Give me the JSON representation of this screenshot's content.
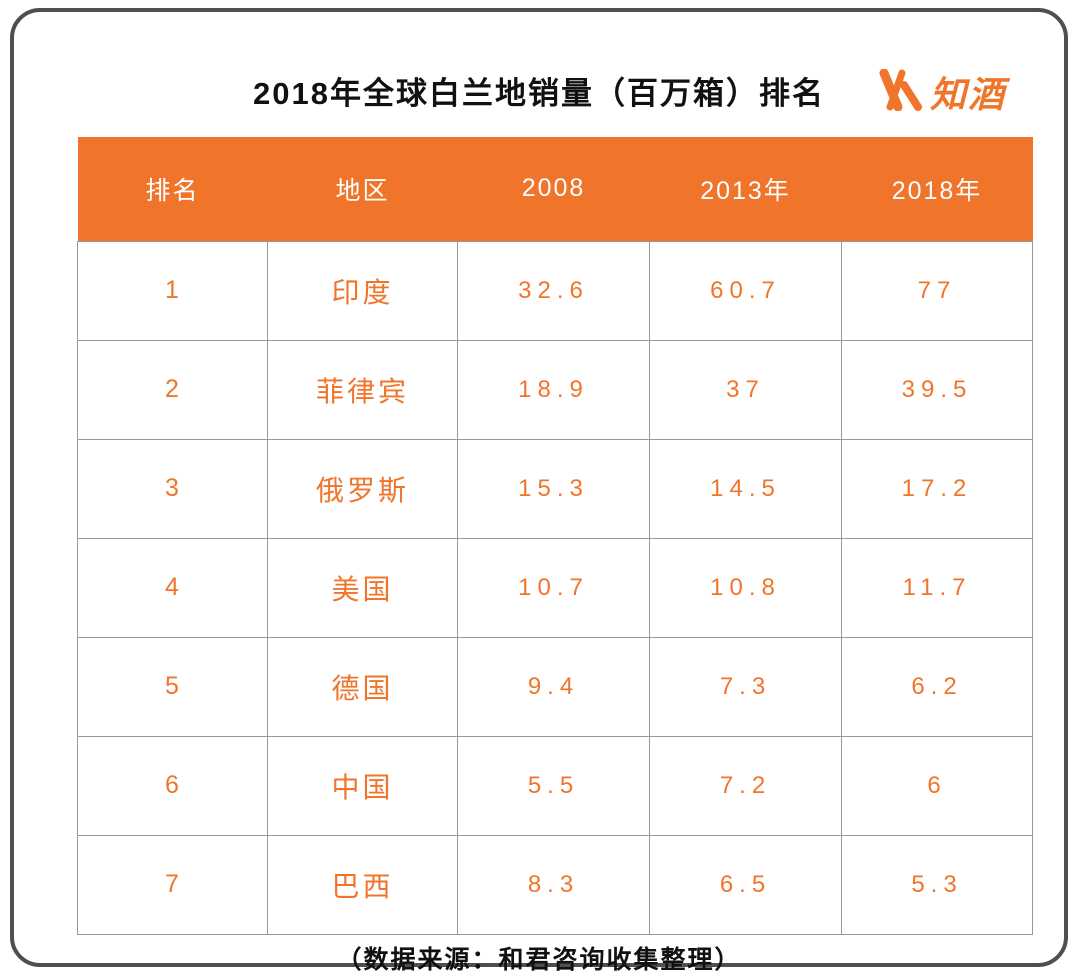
{
  "page": {
    "title": "2018年全球白兰地销量（百万箱）排名",
    "footer": "（数据来源：和君咨询收集整理）",
    "accent_color": "#F0752B",
    "border_color": "#4f4f4f"
  },
  "logo": {
    "text": "知酒",
    "mark_icon": "brush-stroke-w-icon",
    "color": "#F0752B"
  },
  "chart_data": {
    "type": "table",
    "title": "2018年全球白兰地销量（百万箱）排名",
    "columns": [
      "排名",
      "地区",
      "2008",
      "2013年",
      "2018年"
    ],
    "rows": [
      [
        "1",
        "印度",
        "32.6",
        "60.7",
        "77"
      ],
      [
        "2",
        "菲律宾",
        "18.9",
        "37",
        "39.5"
      ],
      [
        "3",
        "俄罗斯",
        "15.3",
        "14.5",
        "17.2"
      ],
      [
        "4",
        "美国",
        "10.7",
        "10.8",
        "11.7"
      ],
      [
        "5",
        "德国",
        "9.4",
        "7.3",
        "6.2"
      ],
      [
        "6",
        "中国",
        "5.5",
        "7.2",
        "6"
      ],
      [
        "7",
        "巴西",
        "8.3",
        "6.5",
        "5.3"
      ]
    ],
    "source": "（数据来源：和君咨询收集整理）",
    "header_bg": "#F0752B",
    "header_text_color": "#ffffff",
    "body_text_color": "#F0752B",
    "grid_color": "#999999",
    "grid": true
  }
}
